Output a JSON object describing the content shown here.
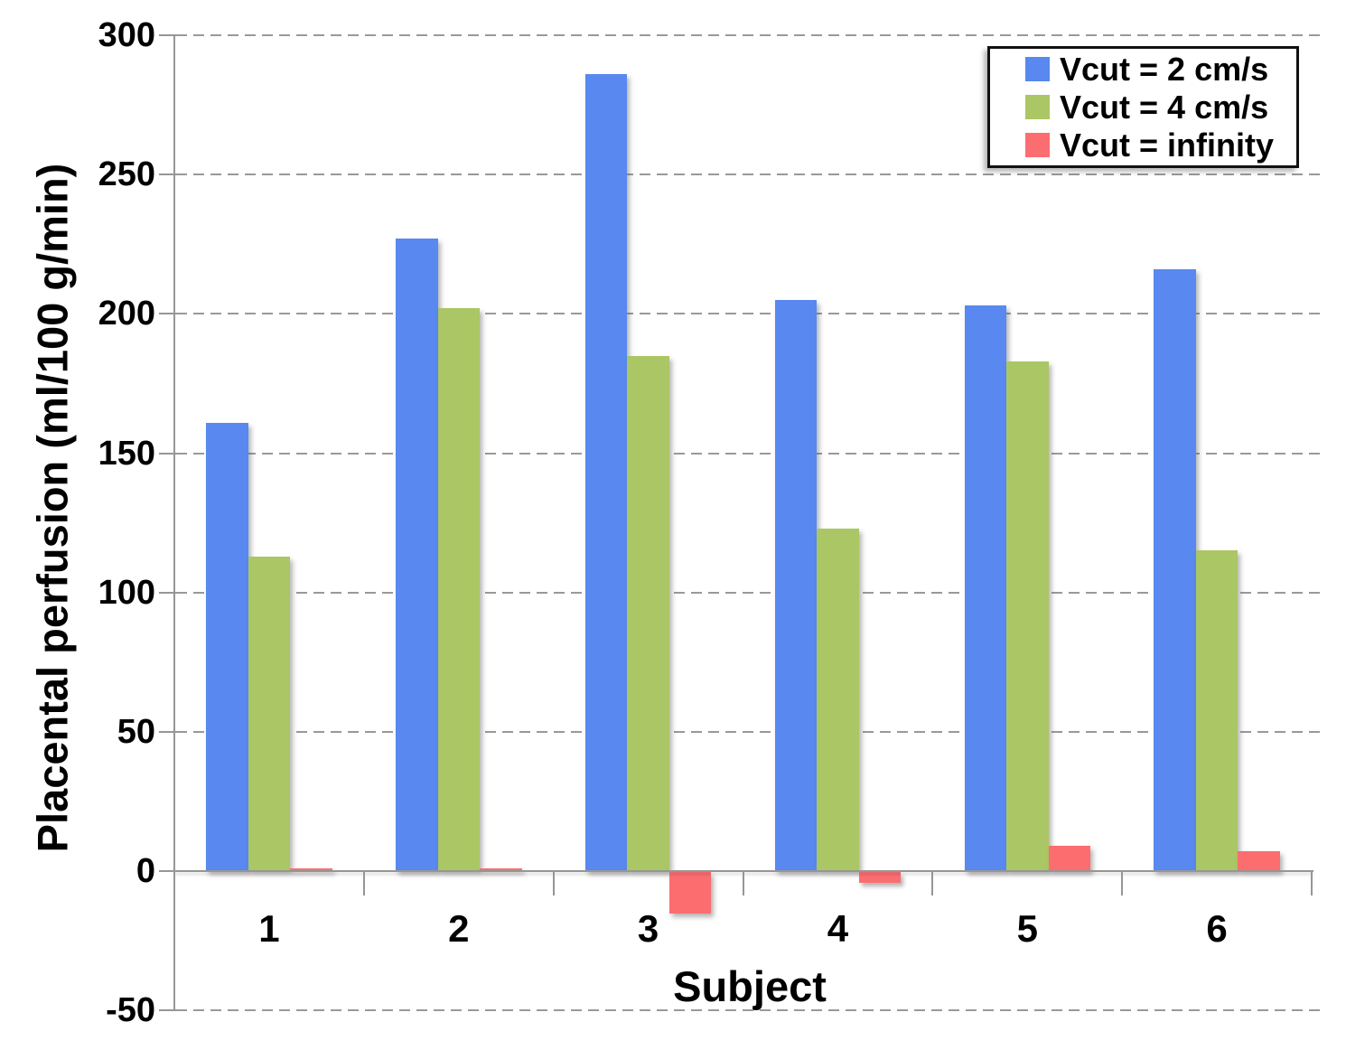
{
  "chart_data": {
    "type": "bar",
    "title": "",
    "xlabel": "Subject",
    "ylabel": "Placental perfusion (ml/100 g/min)",
    "categories": [
      "1",
      "2",
      "3",
      "4",
      "5",
      "6"
    ],
    "series": [
      {
        "name": "Vcut = 2 cm/s",
        "color": "#5888F0",
        "values": [
          161,
          227,
          286,
          205,
          203,
          216
        ]
      },
      {
        "name": "Vcut = 4 cm/s",
        "color": "#ABC664",
        "values": [
          113,
          202,
          185,
          123,
          183,
          115
        ]
      },
      {
        "name": "Vcut = infinity",
        "color": "#FC6D70",
        "values": [
          1,
          1,
          -15,
          -4,
          9,
          7
        ]
      }
    ],
    "ylim": [
      -50,
      300
    ],
    "yticks": [
      300,
      250,
      200,
      150,
      100,
      50,
      0,
      -50
    ],
    "grid": true,
    "legend_position": "top-right",
    "axis_color": "#969696",
    "gridline_color": "#999999",
    "text_color": "#000000"
  }
}
